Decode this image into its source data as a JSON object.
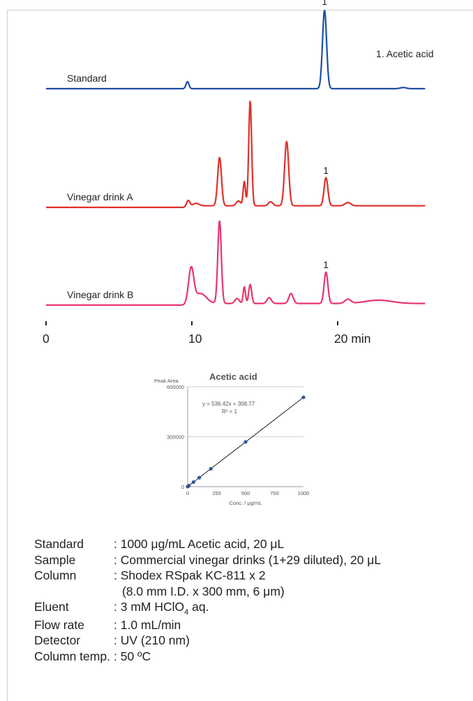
{
  "chart_data": [
    {
      "type": "line",
      "title": "",
      "xlabel": "",
      "x_ticks": [
        "0",
        "10",
        "20 min"
      ],
      "xlim": [
        0,
        26
      ],
      "legend_note": "1. Acetic acid",
      "series": [
        {
          "name": "Standard",
          "color": "#1f4fa3",
          "baseline": 0,
          "peaks": [
            {
              "t": 9.7,
              "h": 0.09,
              "w": 0.1
            },
            {
              "t": 19.1,
              "h": 1.0,
              "w": 0.14,
              "label": "1"
            },
            {
              "t": 24.5,
              "h": 0.015,
              "w": 0.2
            }
          ]
        },
        {
          "name": "Vinegar drink A",
          "color": "#e0302b",
          "peaks": [
            {
              "t": 9.75,
              "h": 0.08,
              "w": 0.12
            },
            {
              "t": 10.3,
              "h": 0.03,
              "w": 0.2
            },
            {
              "t": 11.9,
              "h": 0.6,
              "w": 0.13
            },
            {
              "t": 13.2,
              "h": 0.06,
              "w": 0.15
            },
            {
              "t": 13.6,
              "h": 0.3,
              "w": 0.08
            },
            {
              "t": 14.0,
              "h": 1.3,
              "w": 0.1
            },
            {
              "t": 15.4,
              "h": 0.05,
              "w": 0.15
            },
            {
              "t": 16.5,
              "h": 0.8,
              "w": 0.14
            },
            {
              "t": 19.2,
              "h": 0.35,
              "w": 0.13,
              "label": "1"
            },
            {
              "t": 20.7,
              "h": 0.04,
              "w": 0.2
            }
          ]
        },
        {
          "name": "Vinegar drink B",
          "color": "#e8366a",
          "peaks": [
            {
              "t": 9.95,
              "h": 0.42,
              "w": 0.18
            },
            {
              "t": 10.6,
              "h": 0.12,
              "w": 0.4
            },
            {
              "t": 11.9,
              "h": 1.0,
              "w": 0.12
            },
            {
              "t": 13.1,
              "h": 0.06,
              "w": 0.15
            },
            {
              "t": 13.6,
              "h": 0.2,
              "w": 0.08
            },
            {
              "t": 14.0,
              "h": 0.23,
              "w": 0.1
            },
            {
              "t": 15.3,
              "h": 0.07,
              "w": 0.15
            },
            {
              "t": 16.8,
              "h": 0.12,
              "w": 0.15
            },
            {
              "t": 19.2,
              "h": 0.38,
              "w": 0.13,
              "label": "1"
            },
            {
              "t": 20.7,
              "h": 0.05,
              "w": 0.2
            },
            {
              "t": 22.8,
              "h": 0.04,
              "w": 0.9
            }
          ]
        }
      ]
    },
    {
      "type": "scatter",
      "title": "Acetic acid",
      "ylabel": "Peak Area",
      "xlabel": "Conc. / μg/mL",
      "xlim": [
        0,
        1000
      ],
      "ylim": [
        0,
        600000
      ],
      "x_ticks": [
        0,
        250,
        500,
        750,
        1000
      ],
      "y_ticks": [
        "0",
        "300000",
        "600000"
      ],
      "equation": "y = 536.42x + 308.77",
      "r2": "R² = 1",
      "points": [
        {
          "x": 0,
          "y": 309
        },
        {
          "x": 10,
          "y": 5673
        },
        {
          "x": 50,
          "y": 27130
        },
        {
          "x": 100,
          "y": 53951
        },
        {
          "x": 200,
          "y": 107593
        },
        {
          "x": 500,
          "y": 268519
        },
        {
          "x": 1000,
          "y": 536729
        }
      ],
      "fit": {
        "slope": 536.42,
        "intercept": 308.77
      },
      "colors": {
        "point": "#2f5597",
        "fit": "#000000",
        "grid": "#bfbfbf"
      }
    }
  ],
  "conditions": [
    {
      "key": "Standard",
      "value": ": 1000 μg/mL Acetic acid, 20 μL"
    },
    {
      "key": "Sample",
      "value": ": Commercial vinegar drinks (1+29 diluted), 20 μL"
    },
    {
      "key": "Column",
      "value": ": Shodex RSpak KC-811 x 2"
    },
    {
      "key": "",
      "value": "(8.0 mm I.D. x 300 mm, 6 μm)"
    },
    {
      "key": "Eluent",
      "value_pre": ": 3 mM HClO",
      "value_sub": "4",
      "value_post": " aq."
    },
    {
      "key": "Flow rate",
      "value": ": 1.0 mL/min"
    },
    {
      "key": "Detector",
      "value": ": UV (210 nm)"
    },
    {
      "key": "Column temp.",
      "value": ": 50 ºC"
    }
  ]
}
